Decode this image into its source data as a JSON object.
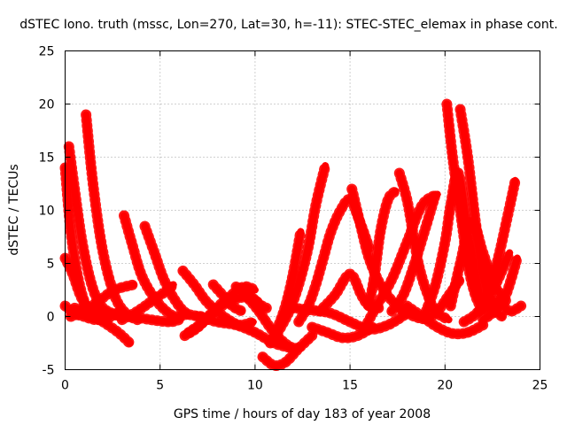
{
  "chart_data": {
    "type": "line",
    "title": "dSTEC Iono. truth (mssc, Lon=270, Lat=30, h=-11): STEC-STEC_elemax in phase cont.",
    "xlabel": "GPS time / hours of day 183 of year 2008",
    "ylabel": "dSTEC  / TECUs",
    "xlim": [
      0,
      25
    ],
    "ylim": [
      -5,
      25
    ],
    "xticks": [
      0,
      5,
      10,
      15,
      20,
      25
    ],
    "yticks": [
      -5,
      0,
      5,
      10,
      15,
      20,
      25
    ],
    "grid": true,
    "legend": "none",
    "marker": "plus",
    "color": "#ff0000",
    "series": [
      {
        "x": [
          0.0,
          0.3,
          0.7,
          1.1,
          1.5,
          1.9,
          2.2
        ],
        "y": [
          14.0,
          8.0,
          3.5,
          1.0,
          0.0,
          -0.3,
          0.0
        ]
      },
      {
        "x": [
          0.2,
          0.5,
          0.9,
          1.4,
          1.9,
          2.6,
          3.0
        ],
        "y": [
          16.0,
          12.0,
          7.0,
          3.0,
          1.0,
          0.2,
          0.0
        ]
      },
      {
        "x": [
          0.0,
          0.4,
          0.8,
          1.2,
          1.6,
          1.8
        ],
        "y": [
          5.5,
          4.0,
          2.0,
          0.8,
          0.5,
          1.0
        ]
      },
      {
        "x": [
          0.0,
          0.5,
          1.0,
          1.6,
          2.2,
          2.8
        ],
        "y": [
          1.0,
          0.3,
          0.0,
          -0.3,
          -0.2,
          0.4
        ]
      },
      {
        "x": [
          1.1,
          1.5,
          2.0,
          2.6,
          3.2,
          3.8
        ],
        "y": [
          19.0,
          12.0,
          6.0,
          2.0,
          0.3,
          -0.3
        ]
      },
      {
        "x": [
          0.5,
          1.2,
          2.0,
          2.8,
          3.4
        ],
        "y": [
          0.8,
          0.4,
          -0.5,
          -1.5,
          -2.5
        ]
      },
      {
        "x": [
          0.3,
          1.0,
          1.8,
          2.6,
          3.6
        ],
        "y": [
          0.0,
          0.5,
          1.5,
          2.5,
          3.0
        ]
      },
      {
        "x": [
          3.1,
          3.5,
          4.0,
          4.6,
          5.2,
          5.8,
          6.4
        ],
        "y": [
          9.5,
          7.0,
          4.0,
          2.0,
          0.7,
          0.0,
          0.2
        ]
      },
      {
        "x": [
          4.2,
          4.7,
          5.2,
          5.8,
          6.4,
          7.2
        ],
        "y": [
          8.5,
          6.0,
          3.5,
          1.5,
          0.3,
          0.0
        ]
      },
      {
        "x": [
          1.5,
          2.5,
          3.5,
          4.5,
          5.5,
          6.0
        ],
        "y": [
          0.5,
          0.2,
          0.0,
          -0.3,
          -0.5,
          -0.3
        ]
      },
      {
        "x": [
          3.0,
          3.8,
          4.6,
          5.4,
          5.7
        ],
        "y": [
          -0.3,
          0.5,
          1.5,
          2.5,
          3.0
        ]
      },
      {
        "x": [
          6.2,
          6.8,
          7.4,
          8.0,
          8.6,
          9.2,
          9.9
        ],
        "y": [
          4.3,
          3.0,
          1.5,
          0.5,
          -0.3,
          -0.8,
          -0.5
        ]
      },
      {
        "x": [
          6.3,
          7.0,
          7.8,
          8.6,
          9.4,
          10.0
        ],
        "y": [
          -1.8,
          -1.0,
          0.5,
          1.8,
          2.8,
          2.5
        ]
      },
      {
        "x": [
          6.5,
          7.3,
          8.1,
          8.9,
          9.6,
          10.3
        ],
        "y": [
          -1.5,
          -0.5,
          0.8,
          1.6,
          1.8,
          1.2
        ]
      },
      {
        "x": [
          7.0,
          8.0,
          9.0,
          10.0,
          11.0,
          12.0
        ],
        "y": [
          0.0,
          -0.5,
          -0.8,
          -1.5,
          -2.5,
          -3.0
        ]
      },
      {
        "x": [
          7.8,
          8.3,
          8.8,
          9.3
        ],
        "y": [
          3.0,
          2.0,
          1.0,
          0.5
        ]
      },
      {
        "x": [
          9.0,
          9.6,
          10.2,
          10.6
        ],
        "y": [
          2.8,
          2.2,
          1.2,
          0.8
        ]
      },
      {
        "x": [
          9.5,
          10.2,
          11.0,
          11.8,
          12.4
        ],
        "y": [
          2.0,
          0.5,
          -1.5,
          -2.8,
          -3.0
        ]
      },
      {
        "x": [
          10.4,
          11.0,
          11.6,
          12.3,
          13.0
        ],
        "y": [
          -3.8,
          -4.6,
          -4.3,
          -3.0,
          -1.8
        ]
      },
      {
        "x": [
          10.8,
          11.2,
          11.6,
          12.0,
          12.4
        ],
        "y": [
          -2.5,
          -1.0,
          1.0,
          4.0,
          8.0
        ]
      },
      {
        "x": [
          11.2,
          11.8,
          12.3,
          12.8,
          13.2,
          13.7
        ],
        "y": [
          -1.5,
          0.5,
          3.0,
          6.5,
          10.5,
          14.2
        ]
      },
      {
        "x": [
          12.3,
          12.8,
          13.2,
          13.6,
          14.0,
          14.5,
          15.0,
          15.5,
          16.0
        ],
        "y": [
          -0.5,
          1.0,
          3.0,
          5.5,
          8.0,
          10.0,
          11.0,
          9.0,
          6.5
        ]
      },
      {
        "x": [
          12.0,
          13.0,
          14.0,
          15.0,
          16.0,
          17.0,
          18.0
        ],
        "y": [
          0.8,
          0.6,
          0.3,
          -0.5,
          -1.2,
          -0.8,
          0.3
        ]
      },
      {
        "x": [
          13.4,
          14.2,
          15.0,
          15.6,
          16.0,
          16.5
        ],
        "y": [
          0.5,
          2.0,
          4.0,
          2.0,
          1.0,
          0.8
        ]
      },
      {
        "x": [
          13.0,
          13.8,
          14.6,
          15.4,
          16.2
        ],
        "y": [
          -1.0,
          -1.5,
          -2.0,
          -1.8,
          -1.0
        ]
      },
      {
        "x": [
          15.1,
          15.5,
          16.0,
          16.6,
          17.2,
          17.8
        ],
        "y": [
          12.0,
          9.0,
          5.5,
          3.0,
          1.5,
          0.5
        ]
      },
      {
        "x": [
          15.8,
          16.4,
          17.2,
          18.0,
          18.8,
          19.6
        ],
        "y": [
          -1.0,
          1.0,
          3.5,
          7.0,
          10.5,
          11.5
        ]
      },
      {
        "x": [
          16.0,
          16.3,
          16.6,
          17.0,
          17.4
        ],
        "y": [
          1.0,
          4.0,
          8.0,
          11.0,
          11.8
        ]
      },
      {
        "x": [
          17.2,
          17.8,
          18.4,
          19.0,
          19.5
        ],
        "y": [
          0.5,
          2.0,
          5.0,
          8.5,
          11.5
        ]
      },
      {
        "x": [
          17.6,
          18.0,
          18.3,
          18.6,
          19.0,
          19.5,
          20.2
        ],
        "y": [
          13.5,
          11.0,
          8.0,
          5.0,
          2.5,
          0.5,
          -0.3
        ]
      },
      {
        "x": [
          17.8,
          18.4,
          19.0,
          19.6,
          20.2,
          20.8
        ],
        "y": [
          0.5,
          0.0,
          -0.2,
          0.5,
          2.0,
          3.5
        ]
      },
      {
        "x": [
          18.0,
          18.8,
          19.6,
          20.4,
          21.2,
          22.0
        ],
        "y": [
          1.0,
          0.0,
          -1.0,
          -1.6,
          -1.5,
          -0.8
        ]
      },
      {
        "x": [
          19.0,
          19.5,
          20.0,
          20.3,
          20.7,
          21.2,
          21.8
        ],
        "y": [
          0.5,
          3.0,
          7.0,
          10.5,
          13.5,
          8.0,
          2.0
        ]
      },
      {
        "x": [
          20.1,
          20.4,
          20.8,
          21.2,
          21.6,
          22.0
        ],
        "y": [
          20.0,
          15.0,
          10.0,
          5.0,
          2.0,
          0.5
        ]
      },
      {
        "x": [
          20.8,
          21.2,
          21.6,
          22.0,
          22.5,
          23.0
        ],
        "y": [
          19.5,
          15.0,
          9.0,
          4.0,
          1.0,
          0.0
        ]
      },
      {
        "x": [
          20.3,
          20.8,
          21.4,
          22.0,
          22.6,
          23.2
        ],
        "y": [
          1.0,
          5.0,
          9.0,
          6.0,
          3.0,
          1.5
        ]
      },
      {
        "x": [
          21.0,
          21.6,
          22.2,
          22.8,
          23.4
        ],
        "y": [
          -0.5,
          0.2,
          1.5,
          3.5,
          6.0
        ]
      },
      {
        "x": [
          21.8,
          22.3,
          22.8,
          23.3,
          23.7
        ],
        "y": [
          0.5,
          2.5,
          5.5,
          9.5,
          12.8
        ]
      },
      {
        "x": [
          22.0,
          22.6,
          23.2,
          23.8
        ],
        "y": [
          -0.3,
          0.5,
          2.0,
          5.5
        ]
      },
      {
        "x": [
          22.2,
          22.8,
          23.4,
          24.0
        ],
        "y": [
          0.8,
          1.5,
          0.5,
          1.0
        ]
      }
    ]
  }
}
